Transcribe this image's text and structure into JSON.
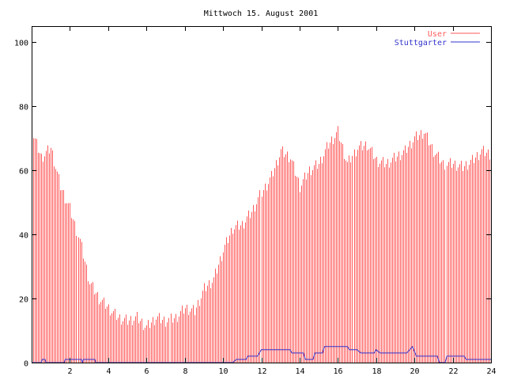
{
  "chart_data": {
    "type": "bar",
    "title": "Mittwoch 15. August 2001",
    "xlabel": "",
    "ylabel": "",
    "xlim": [
      0,
      24
    ],
    "ylim": [
      0,
      105
    ],
    "x_ticks": [
      2,
      4,
      6,
      8,
      10,
      12,
      14,
      16,
      18,
      20,
      22,
      24
    ],
    "y_ticks": [
      0,
      20,
      40,
      60,
      80,
      100
    ],
    "grid": false,
    "legend_position": "top-right",
    "series": [
      {
        "name": "User",
        "style": "impulses",
        "color": "#ff5a5a",
        "points": [
          [
            0.0,
            72
          ],
          [
            0.5,
            64
          ],
          [
            1.0,
            67
          ],
          [
            1.5,
            55
          ],
          [
            2.0,
            48
          ],
          [
            2.5,
            38
          ],
          [
            3.0,
            25
          ],
          [
            3.5,
            20
          ],
          [
            4.0,
            17
          ],
          [
            4.5,
            14
          ],
          [
            5.0,
            13
          ],
          [
            5.5,
            14
          ],
          [
            6.0,
            11
          ],
          [
            6.5,
            14
          ],
          [
            7.0,
            13
          ],
          [
            7.5,
            14
          ],
          [
            8.0,
            17
          ],
          [
            8.5,
            16
          ],
          [
            9.0,
            23
          ],
          [
            9.5,
            26
          ],
          [
            10.0,
            35
          ],
          [
            10.5,
            42
          ],
          [
            11.0,
            43
          ],
          [
            11.5,
            47
          ],
          [
            12.0,
            53
          ],
          [
            12.5,
            58
          ],
          [
            13.0,
            66
          ],
          [
            13.5,
            64
          ],
          [
            14.0,
            55
          ],
          [
            14.5,
            60
          ],
          [
            15.0,
            62
          ],
          [
            15.5,
            68
          ],
          [
            16.0,
            72
          ],
          [
            16.5,
            62
          ],
          [
            17.0,
            67
          ],
          [
            17.5,
            68
          ],
          [
            18.0,
            63
          ],
          [
            18.5,
            62
          ],
          [
            19.0,
            64
          ],
          [
            19.5,
            66
          ],
          [
            20.0,
            70
          ],
          [
            20.5,
            72
          ],
          [
            21.0,
            66
          ],
          [
            21.5,
            62
          ],
          [
            22.0,
            62
          ],
          [
            22.5,
            61
          ],
          [
            23.0,
            63
          ],
          [
            23.5,
            66
          ],
          [
            24.0,
            65
          ]
        ]
      },
      {
        "name": "Stuttgarter",
        "style": "lines",
        "color": "#3333cc",
        "points": [
          [
            0.0,
            0
          ],
          [
            0.5,
            0
          ],
          [
            0.55,
            1
          ],
          [
            0.7,
            1
          ],
          [
            0.75,
            0
          ],
          [
            1.7,
            0
          ],
          [
            1.75,
            1
          ],
          [
            2.6,
            1
          ],
          [
            2.65,
            0
          ],
          [
            2.7,
            1
          ],
          [
            3.3,
            1
          ],
          [
            3.35,
            0
          ],
          [
            10.5,
            0
          ],
          [
            10.7,
            1
          ],
          [
            11.2,
            1
          ],
          [
            11.3,
            2
          ],
          [
            11.8,
            2
          ],
          [
            12.0,
            4
          ],
          [
            13.5,
            4
          ],
          [
            13.6,
            3
          ],
          [
            14.2,
            3
          ],
          [
            14.3,
            1
          ],
          [
            14.7,
            1
          ],
          [
            14.8,
            3
          ],
          [
            15.2,
            3
          ],
          [
            15.3,
            5
          ],
          [
            16.5,
            5
          ],
          [
            16.6,
            4
          ],
          [
            17.0,
            4
          ],
          [
            17.2,
            3
          ],
          [
            17.9,
            3
          ],
          [
            18.0,
            4
          ],
          [
            18.2,
            3
          ],
          [
            19.6,
            3
          ],
          [
            19.9,
            5
          ],
          [
            20.1,
            2
          ],
          [
            21.2,
            2
          ],
          [
            21.3,
            0
          ],
          [
            21.6,
            0
          ],
          [
            21.7,
            2
          ],
          [
            22.6,
            2
          ],
          [
            22.7,
            1
          ],
          [
            24.0,
            1
          ]
        ]
      }
    ]
  }
}
